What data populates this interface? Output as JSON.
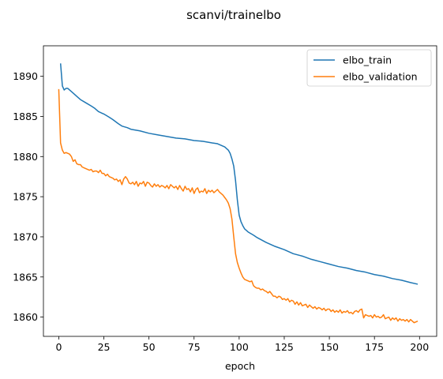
{
  "chart_data": {
    "type": "line",
    "title": "scanvi/trainelbo",
    "xlabel": "epoch",
    "ylabel": "",
    "xlim": [
      -8.5,
      209.5
    ],
    "ylim": [
      1857.6,
      1893.8
    ],
    "xticks": [
      0,
      25,
      50,
      75,
      100,
      125,
      150,
      175,
      200
    ],
    "yticks": [
      1860,
      1865,
      1870,
      1875,
      1880,
      1885,
      1890
    ],
    "grid": false,
    "legend_position": "top-right",
    "series": [
      {
        "name": "elbo_train",
        "color": "#1f77b4",
        "points": [
          [
            1,
            1891.6
          ],
          [
            2,
            1888.8
          ],
          [
            3,
            1888.3
          ],
          [
            4,
            1888.5
          ],
          [
            5,
            1888.5
          ],
          [
            6,
            1888.3
          ],
          [
            8,
            1887.9
          ],
          [
            10,
            1887.5
          ],
          [
            12,
            1887.1
          ],
          [
            15,
            1886.7
          ],
          [
            18,
            1886.3
          ],
          [
            20,
            1886.0
          ],
          [
            22,
            1885.6
          ],
          [
            25,
            1885.3
          ],
          [
            28,
            1884.9
          ],
          [
            30,
            1884.6
          ],
          [
            33,
            1884.1
          ],
          [
            35,
            1883.8
          ],
          [
            38,
            1883.6
          ],
          [
            40,
            1883.4
          ],
          [
            45,
            1883.2
          ],
          [
            50,
            1882.9
          ],
          [
            55,
            1882.7
          ],
          [
            60,
            1882.5
          ],
          [
            65,
            1882.3
          ],
          [
            70,
            1882.2
          ],
          [
            75,
            1882.0
          ],
          [
            80,
            1881.9
          ],
          [
            85,
            1881.7
          ],
          [
            88,
            1881.6
          ],
          [
            90,
            1881.4
          ],
          [
            92,
            1881.2
          ],
          [
            94,
            1880.8
          ],
          [
            95,
            1880.4
          ],
          [
            96,
            1879.7
          ],
          [
            97,
            1878.8
          ],
          [
            98,
            1877.0
          ],
          [
            99,
            1874.6
          ],
          [
            100,
            1872.7
          ],
          [
            101,
            1871.9
          ],
          [
            102,
            1871.4
          ],
          [
            103,
            1871.0
          ],
          [
            105,
            1870.6
          ],
          [
            108,
            1870.2
          ],
          [
            110,
            1869.9
          ],
          [
            115,
            1869.3
          ],
          [
            120,
            1868.8
          ],
          [
            125,
            1868.4
          ],
          [
            130,
            1867.9
          ],
          [
            135,
            1867.6
          ],
          [
            140,
            1867.2
          ],
          [
            145,
            1866.9
          ],
          [
            150,
            1866.6
          ],
          [
            155,
            1866.3
          ],
          [
            160,
            1866.1
          ],
          [
            165,
            1865.8
          ],
          [
            170,
            1865.6
          ],
          [
            175,
            1865.3
          ],
          [
            180,
            1865.1
          ],
          [
            185,
            1864.8
          ],
          [
            190,
            1864.6
          ],
          [
            195,
            1864.3
          ],
          [
            199,
            1864.1
          ]
        ]
      },
      {
        "name": "elbo_validation",
        "color": "#ff7f0e",
        "points": [
          [
            0,
            1888.4
          ],
          [
            1,
            1881.7
          ],
          [
            2,
            1880.8
          ],
          [
            3,
            1880.4
          ],
          [
            4,
            1880.5
          ],
          [
            5,
            1880.4
          ],
          [
            6,
            1880.3
          ],
          [
            7,
            1880.0
          ],
          [
            8,
            1879.4
          ],
          [
            9,
            1879.6
          ],
          [
            10,
            1879.1
          ],
          [
            11,
            1879.0
          ],
          [
            12,
            1879.0
          ],
          [
            13,
            1878.7
          ],
          [
            14,
            1878.6
          ],
          [
            15,
            1878.5
          ],
          [
            16,
            1878.4
          ],
          [
            17,
            1878.3
          ],
          [
            18,
            1878.4
          ],
          [
            19,
            1878.1
          ],
          [
            20,
            1878.2
          ],
          [
            21,
            1878.2
          ],
          [
            22,
            1878.0
          ],
          [
            23,
            1878.3
          ],
          [
            24,
            1877.9
          ],
          [
            25,
            1877.9
          ],
          [
            26,
            1877.6
          ],
          [
            27,
            1877.8
          ],
          [
            28,
            1877.5
          ],
          [
            29,
            1877.4
          ],
          [
            30,
            1877.3
          ],
          [
            31,
            1877.1
          ],
          [
            32,
            1877.2
          ],
          [
            33,
            1876.9
          ],
          [
            34,
            1877.1
          ],
          [
            35,
            1876.5
          ],
          [
            36,
            1877.2
          ],
          [
            37,
            1877.5
          ],
          [
            38,
            1877.2
          ],
          [
            39,
            1876.7
          ],
          [
            40,
            1876.6
          ],
          [
            41,
            1876.8
          ],
          [
            42,
            1876.5
          ],
          [
            43,
            1876.9
          ],
          [
            44,
            1876.3
          ],
          [
            45,
            1876.7
          ],
          [
            46,
            1876.6
          ],
          [
            47,
            1876.9
          ],
          [
            48,
            1876.3
          ],
          [
            49,
            1876.8
          ],
          [
            50,
            1876.7
          ],
          [
            51,
            1876.4
          ],
          [
            52,
            1876.2
          ],
          [
            53,
            1876.6
          ],
          [
            54,
            1876.3
          ],
          [
            55,
            1876.5
          ],
          [
            56,
            1876.2
          ],
          [
            57,
            1876.4
          ],
          [
            58,
            1876.3
          ],
          [
            59,
            1876.1
          ],
          [
            60,
            1876.4
          ],
          [
            61,
            1876.0
          ],
          [
            62,
            1876.5
          ],
          [
            63,
            1876.3
          ],
          [
            64,
            1876.1
          ],
          [
            65,
            1876.3
          ],
          [
            66,
            1875.9
          ],
          [
            67,
            1876.4
          ],
          [
            68,
            1876.0
          ],
          [
            69,
            1875.7
          ],
          [
            70,
            1876.3
          ],
          [
            71,
            1875.9
          ],
          [
            72,
            1876.0
          ],
          [
            73,
            1875.6
          ],
          [
            74,
            1876.1
          ],
          [
            75,
            1875.4
          ],
          [
            76,
            1875.9
          ],
          [
            77,
            1876.1
          ],
          [
            78,
            1875.5
          ],
          [
            79,
            1875.7
          ],
          [
            80,
            1875.6
          ],
          [
            81,
            1876.0
          ],
          [
            82,
            1875.4
          ],
          [
            83,
            1875.8
          ],
          [
            84,
            1875.6
          ],
          [
            85,
            1875.8
          ],
          [
            86,
            1875.5
          ],
          [
            87,
            1875.7
          ],
          [
            88,
            1875.9
          ],
          [
            89,
            1875.6
          ],
          [
            90,
            1875.4
          ],
          [
            91,
            1875.2
          ],
          [
            92,
            1874.9
          ],
          [
            93,
            1874.6
          ],
          [
            94,
            1874.2
          ],
          [
            95,
            1873.5
          ],
          [
            96,
            1872.2
          ],
          [
            97,
            1870.0
          ],
          [
            98,
            1867.9
          ],
          [
            99,
            1866.8
          ],
          [
            100,
            1866.1
          ],
          [
            101,
            1865.5
          ],
          [
            102,
            1865.0
          ],
          [
            103,
            1864.7
          ],
          [
            104,
            1864.6
          ],
          [
            105,
            1864.5
          ],
          [
            106,
            1864.4
          ],
          [
            107,
            1864.5
          ],
          [
            108,
            1863.9
          ],
          [
            109,
            1863.7
          ],
          [
            110,
            1863.6
          ],
          [
            111,
            1863.6
          ],
          [
            112,
            1863.4
          ],
          [
            113,
            1863.5
          ],
          [
            114,
            1863.3
          ],
          [
            115,
            1863.2
          ],
          [
            116,
            1863.0
          ],
          [
            117,
            1863.2
          ],
          [
            118,
            1862.9
          ],
          [
            119,
            1862.6
          ],
          [
            120,
            1862.6
          ],
          [
            121,
            1862.4
          ],
          [
            122,
            1862.6
          ],
          [
            123,
            1862.5
          ],
          [
            124,
            1862.2
          ],
          [
            125,
            1862.3
          ],
          [
            126,
            1862.1
          ],
          [
            127,
            1862.3
          ],
          [
            128,
            1861.9
          ],
          [
            129,
            1862.1
          ],
          [
            130,
            1862.0
          ],
          [
            131,
            1861.6
          ],
          [
            132,
            1861.9
          ],
          [
            133,
            1861.5
          ],
          [
            134,
            1861.8
          ],
          [
            135,
            1861.4
          ],
          [
            136,
            1861.5
          ],
          [
            137,
            1861.6
          ],
          [
            138,
            1861.2
          ],
          [
            139,
            1861.5
          ],
          [
            140,
            1861.3
          ],
          [
            141,
            1861.1
          ],
          [
            142,
            1861.3
          ],
          [
            143,
            1861.0
          ],
          [
            144,
            1861.2
          ],
          [
            145,
            1861.1
          ],
          [
            146,
            1860.9
          ],
          [
            147,
            1861.1
          ],
          [
            148,
            1860.8
          ],
          [
            149,
            1861.0
          ],
          [
            150,
            1861.0
          ],
          [
            151,
            1860.7
          ],
          [
            152,
            1860.9
          ],
          [
            153,
            1860.6
          ],
          [
            154,
            1860.8
          ],
          [
            155,
            1860.6
          ],
          [
            156,
            1860.9
          ],
          [
            157,
            1860.5
          ],
          [
            158,
            1860.7
          ],
          [
            159,
            1860.6
          ],
          [
            160,
            1860.8
          ],
          [
            161,
            1860.5
          ],
          [
            162,
            1860.6
          ],
          [
            163,
            1860.4
          ],
          [
            164,
            1860.7
          ],
          [
            165,
            1860.8
          ],
          [
            166,
            1860.6
          ],
          [
            167,
            1860.9
          ],
          [
            168,
            1861.0
          ],
          [
            169,
            1859.9
          ],
          [
            170,
            1860.3
          ],
          [
            171,
            1860.2
          ],
          [
            172,
            1860.1
          ],
          [
            173,
            1860.2
          ],
          [
            174,
            1859.9
          ],
          [
            175,
            1860.3
          ],
          [
            176,
            1860.0
          ],
          [
            177,
            1860.1
          ],
          [
            178,
            1859.9
          ],
          [
            179,
            1860.0
          ],
          [
            180,
            1860.3
          ],
          [
            181,
            1859.8
          ],
          [
            182,
            1859.9
          ],
          [
            183,
            1860.0
          ],
          [
            184,
            1859.6
          ],
          [
            185,
            1859.9
          ],
          [
            186,
            1859.7
          ],
          [
            187,
            1859.9
          ],
          [
            188,
            1859.5
          ],
          [
            189,
            1859.8
          ],
          [
            190,
            1859.6
          ],
          [
            191,
            1859.7
          ],
          [
            192,
            1859.5
          ],
          [
            193,
            1859.7
          ],
          [
            194,
            1859.4
          ],
          [
            195,
            1859.7
          ],
          [
            196,
            1859.5
          ],
          [
            197,
            1859.3
          ],
          [
            198,
            1859.4
          ],
          [
            199,
            1859.5
          ]
        ]
      }
    ]
  }
}
